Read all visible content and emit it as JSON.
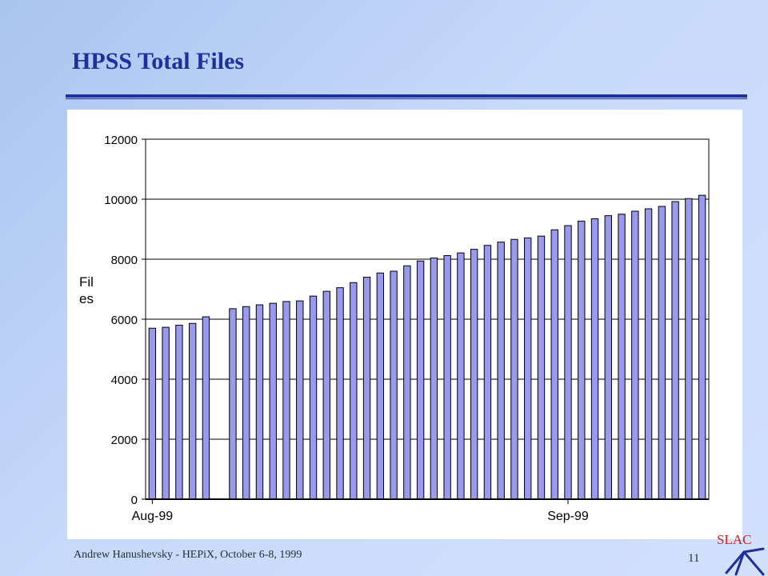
{
  "slide": {
    "title": "HPSS Total Files",
    "footer": "Andrew Hanushevsky - HEPiX, October 6-8, 1999",
    "page_number": "11",
    "logo_text": "SLAC"
  },
  "colors": {
    "title": "#1f2f9c",
    "bar_fill": "#9999ee",
    "bar_stroke": "#000000",
    "panel": "#ffffff"
  },
  "chart_data": {
    "type": "bar",
    "title": "",
    "xlabel": "",
    "ylabel": "Files",
    "ylim": [
      0,
      12000
    ],
    "yticks": [
      0,
      2000,
      4000,
      6000,
      8000,
      10000,
      12000
    ],
    "grid": true,
    "x_tick_labels": [
      {
        "label": "Aug-99",
        "index": 0
      },
      {
        "label": "Sep-99",
        "index": 31
      }
    ],
    "values": [
      5700,
      5730,
      5800,
      5860,
      6080,
      null,
      6350,
      6420,
      6480,
      6530,
      6590,
      6610,
      6770,
      6930,
      7050,
      7220,
      7400,
      7540,
      7600,
      7780,
      7940,
      8040,
      8120,
      8210,
      8330,
      8460,
      8570,
      8660,
      8710,
      8770,
      8980,
      9120,
      9270,
      9350,
      9450,
      9500,
      9600,
      9680,
      9760,
      9920,
      10020,
      10130
    ]
  }
}
